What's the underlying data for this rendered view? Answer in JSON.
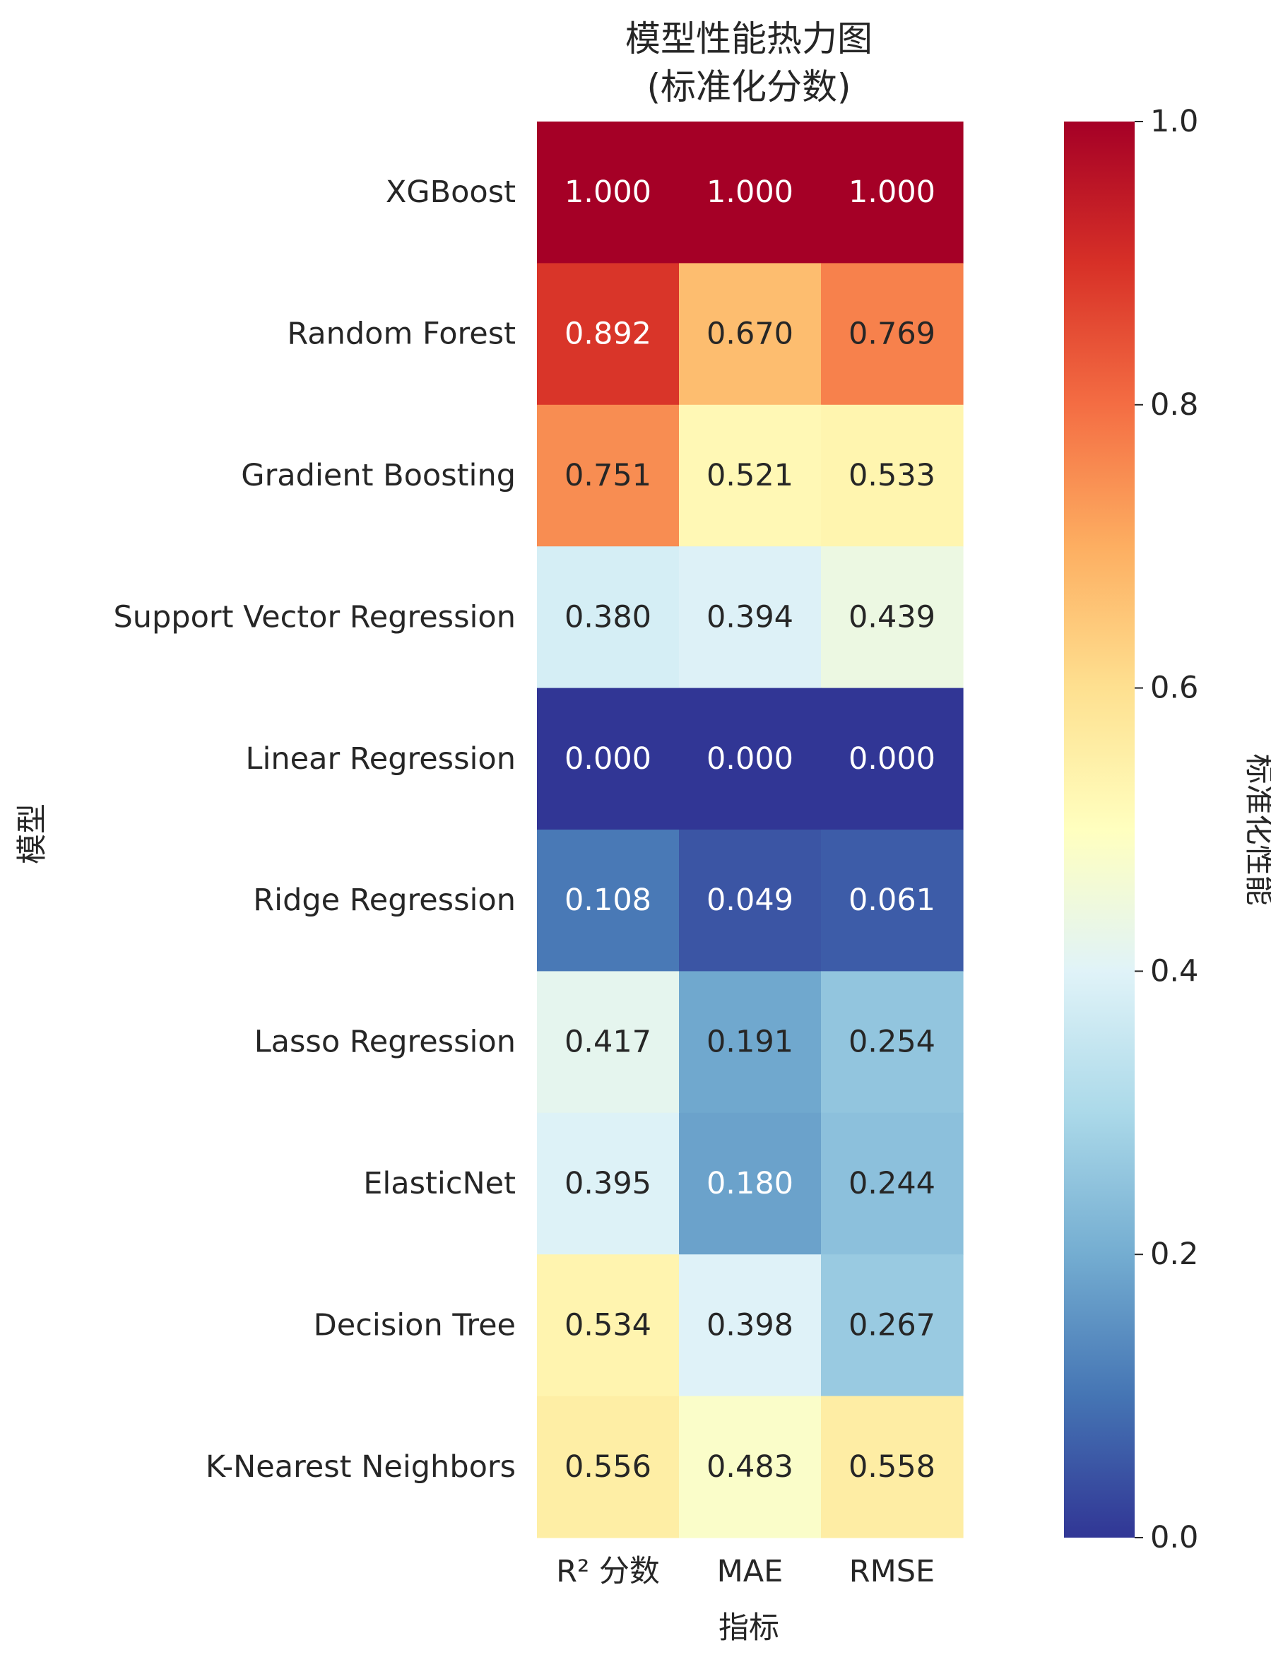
{
  "chart_data": {
    "type": "heatmap",
    "title_lines": [
      "模型性能热力图",
      "(标准化分数)"
    ],
    "xlabel": "指标",
    "ylabel": "模型",
    "columns": [
      "R² 分数",
      "MAE",
      "RMSE"
    ],
    "rows": [
      "XGBoost",
      "Random Forest",
      "Gradient Boosting",
      "Support Vector Regression",
      "Linear Regression",
      "Ridge Regression",
      "Lasso Regression",
      "ElasticNet",
      "Decision Tree",
      "K-Nearest Neighbors"
    ],
    "values": [
      [
        1.0,
        1.0,
        1.0
      ],
      [
        0.892,
        0.67,
        0.769
      ],
      [
        0.751,
        0.521,
        0.533
      ],
      [
        0.38,
        0.394,
        0.439
      ],
      [
        0.0,
        0.0,
        0.0
      ],
      [
        0.108,
        0.049,
        0.061
      ],
      [
        0.417,
        0.191,
        0.254
      ],
      [
        0.395,
        0.18,
        0.244
      ],
      [
        0.534,
        0.398,
        0.267
      ],
      [
        0.556,
        0.483,
        0.558
      ]
    ],
    "value_format": "0.000",
    "colormap": "RdYlBu_r",
    "colorbar": {
      "label": "标准化性能",
      "range": [
        0.0,
        1.0
      ],
      "ticks": [
        "0.0",
        "0.2",
        "0.4",
        "0.6",
        "0.8",
        "1.0"
      ]
    }
  }
}
